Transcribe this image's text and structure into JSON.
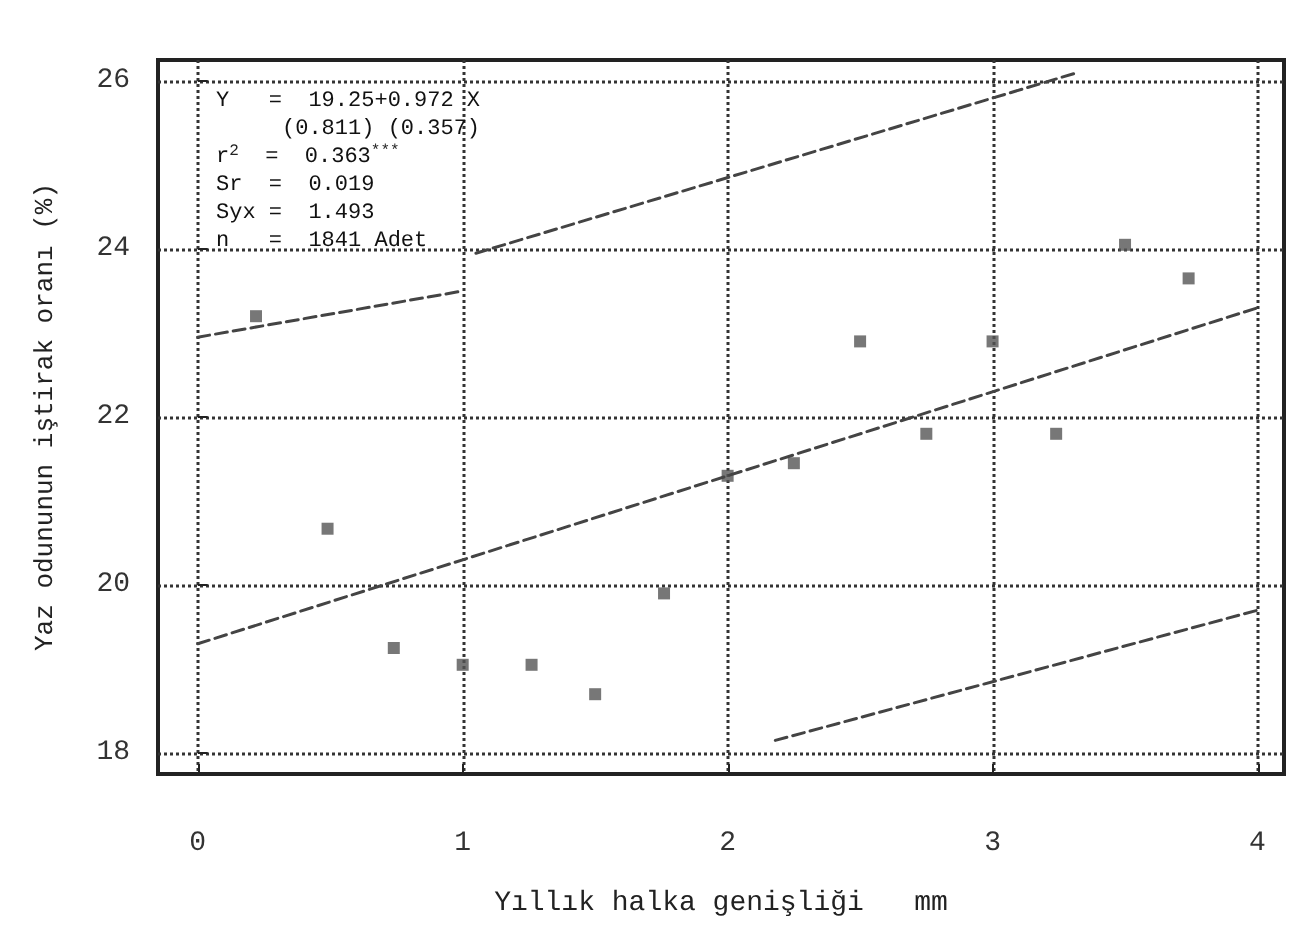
{
  "chart_data": {
    "type": "scatter",
    "xlabel": "Yıllık halka genişliği   mm",
    "ylabel": "Yaz odununun iştirak oranı (%)",
    "annotations": [
      "Y   =  19.25+0.972 X",
      "     (0.811) (0.357)",
      "r$^{2}$  =  0.363$^{***}$",
      "Sr  =  0.019",
      "Syx =  1.493",
      "n   =  1841 Adet"
    ],
    "xlim": [
      -0.15,
      4.1
    ],
    "xticks": [
      0,
      1,
      2,
      3,
      4
    ],
    "ylim": [
      17.75,
      26.25
    ],
    "yticks": [
      18,
      20,
      22,
      24,
      26
    ],
    "grid": true,
    "marker": "square",
    "series": [
      {
        "type": "scatter",
        "color": "#555555",
        "x": [
          0.22,
          0.49,
          0.74,
          1.0,
          1.26,
          1.5,
          1.76,
          2.0,
          2.25,
          2.5,
          2.75,
          3.0,
          3.24,
          3.5,
          3.74
        ],
        "values": [
          23.2,
          20.67,
          19.25,
          19.05,
          19.05,
          18.7,
          19.9,
          21.3,
          21.45,
          22.9,
          21.8,
          22.9,
          21.8,
          24.05,
          23.65
        ]
      },
      {
        "type": "line",
        "line_style": "dashed",
        "marker": "none",
        "color": "#444444",
        "x": [
          0,
          4
        ],
        "values": [
          19.3,
          23.3
        ]
      },
      {
        "type": "line",
        "line_style": "dashed",
        "marker": "none",
        "color": "#444444",
        "x": [
          0,
          1
        ],
        "values": [
          22.95,
          23.5
        ]
      },
      {
        "type": "line",
        "line_style": "dashed",
        "marker": "none",
        "color": "#444444",
        "x": [
          1.05,
          3.32
        ],
        "values": [
          23.95,
          26.1
        ]
      },
      {
        "type": "line",
        "line_style": "dashed",
        "marker": "none",
        "color": "#444444",
        "x": [
          2.18,
          4
        ],
        "values": [
          18.15,
          19.7
        ]
      }
    ]
  }
}
